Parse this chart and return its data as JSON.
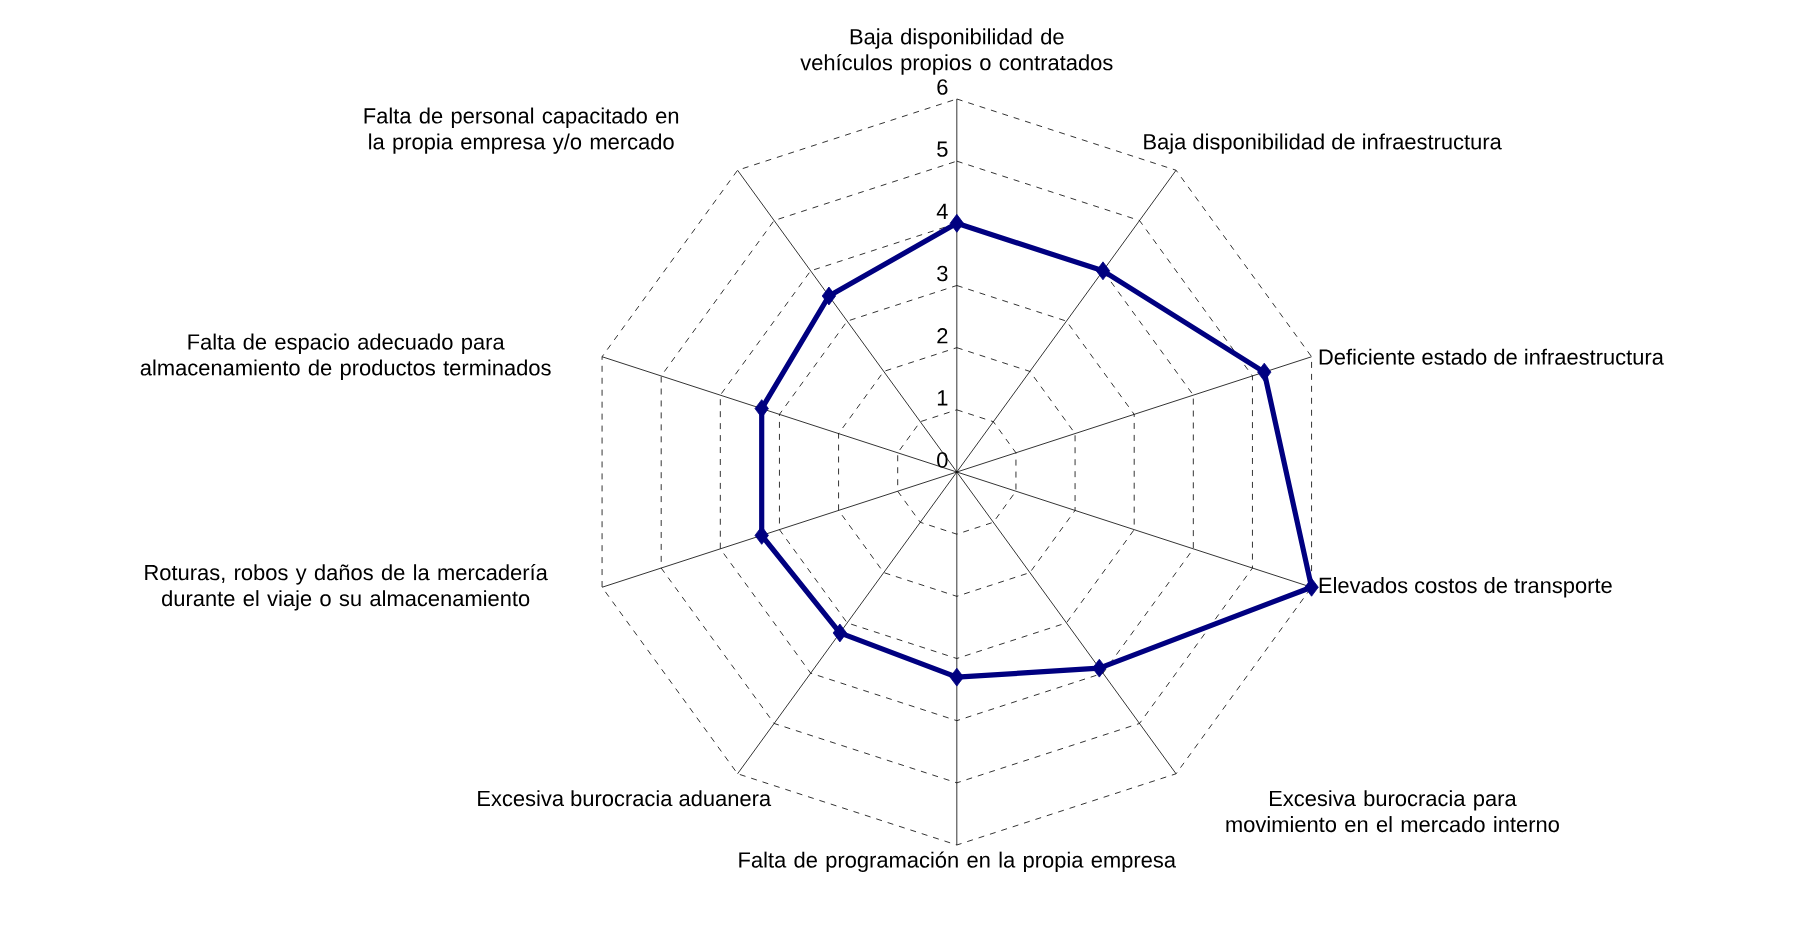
{
  "chart_data": {
    "type": "radar",
    "categories": [
      "Baja disponibilidad de vehículos propios o contratados",
      "Baja disponibilidad de infraestructura",
      "Deficiente estado de infraestructura",
      "Elevados costos de transporte",
      "Excesiva burocracia para movimiento en el mercado interno",
      "Falta de programación en la propia empresa",
      "Excesiva burocracia aduanera",
      "Roturas, robos y daños de la mercadería durante el viaje o su almacenamiento",
      "Falta de espacio adecuado para almacenamiento de productos terminados",
      "Falta de personal capacitado en la propia empresa y/o mercado"
    ],
    "series": [
      {
        "color": "#000080",
        "values": [
          4.0,
          4.0,
          5.2,
          6.0,
          3.9,
          3.3,
          3.2,
          3.3,
          3.3,
          3.5
        ]
      }
    ],
    "ylim": [
      0,
      6
    ],
    "yticks": [
      0,
      1,
      2,
      3,
      4,
      5,
      6
    ],
    "grid": true,
    "marker": "diamond",
    "line_style": "solid"
  }
}
